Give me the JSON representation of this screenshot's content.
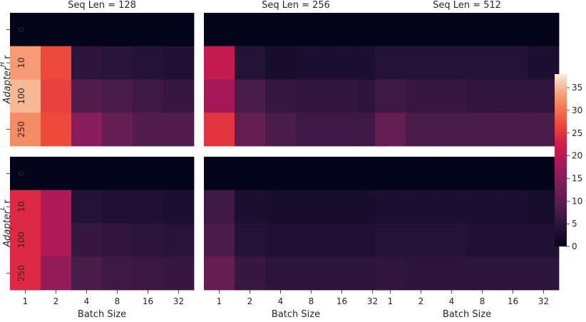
{
  "chart_data": {
    "type": "heatmap",
    "colormap": "rocket",
    "colorbar": {
      "min": 0,
      "max": 38,
      "ticks": [
        0,
        5,
        10,
        15,
        20,
        25,
        30,
        35
      ]
    },
    "column_titles": [
      "Seq Len = 128",
      "Seq Len = 256",
      "Seq Len = 512"
    ],
    "x_categories": [
      "1",
      "2",
      "4",
      "8",
      "16",
      "32"
    ],
    "y_categories": [
      "0",
      "10",
      "100",
      "250"
    ],
    "xlabel": "Batch Size",
    "row_labels": [
      {
        "prefix": "Adapter",
        "sup": "H",
        "suffix": " r"
      },
      {
        "prefix": "Adapter",
        "sup": "L",
        "suffix": " r"
      }
    ],
    "panels": [
      {
        "row": 0,
        "col": 0,
        "values": [
          [
            0,
            0,
            0,
            0,
            0,
            0
          ],
          [
            33,
            27,
            5,
            4.5,
            4,
            3.5
          ],
          [
            35,
            26,
            9,
            8,
            7,
            6
          ],
          [
            32,
            27,
            15,
            11,
            9,
            9
          ]
        ]
      },
      {
        "row": 0,
        "col": 1,
        "values": [
          [
            0,
            0,
            0,
            0,
            0,
            0
          ],
          [
            21,
            4,
            2.5,
            3,
            3,
            3
          ],
          [
            18,
            8,
            6,
            5.5,
            5.5,
            5
          ],
          [
            25,
            11,
            8,
            7,
            7,
            7
          ]
        ]
      },
      {
        "row": 0,
        "col": 2,
        "values": [
          [
            0,
            0,
            0,
            0,
            0,
            0
          ],
          [
            4,
            4,
            4,
            4,
            4,
            3
          ],
          [
            7,
            6,
            6,
            5.5,
            5.5,
            5.5
          ],
          [
            11,
            8,
            8,
            8,
            8,
            8
          ]
        ]
      },
      {
        "row": 1,
        "col": 0,
        "values": [
          [
            0,
            0,
            0,
            0,
            0,
            0
          ],
          [
            24,
            19,
            4,
            3.5,
            3.5,
            3
          ],
          [
            24,
            19,
            6,
            5.5,
            5,
            4.5
          ],
          [
            24,
            16,
            8,
            7,
            6.5,
            6
          ]
        ]
      },
      {
        "row": 1,
        "col": 1,
        "values": [
          [
            0,
            0,
            0,
            0,
            0,
            0
          ],
          [
            7,
            3,
            2.5,
            2.5,
            2.5,
            2.5
          ],
          [
            8,
            4,
            3.5,
            3.5,
            3.5,
            3.5
          ],
          [
            11,
            6,
            5,
            5,
            5,
            5
          ]
        ]
      },
      {
        "row": 1,
        "col": 2,
        "values": [
          [
            0,
            0,
            0,
            0,
            0,
            0
          ],
          [
            3,
            3,
            3,
            3,
            3,
            2.5
          ],
          [
            4,
            4,
            4,
            3.5,
            3.5,
            3.5
          ],
          [
            5.5,
            5,
            5,
            5,
            5,
            5
          ]
        ]
      }
    ]
  }
}
